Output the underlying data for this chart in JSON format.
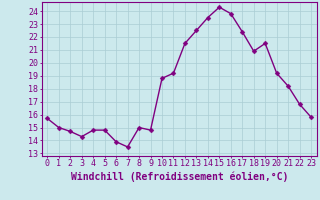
{
  "x": [
    0,
    1,
    2,
    3,
    4,
    5,
    6,
    7,
    8,
    9,
    10,
    11,
    12,
    13,
    14,
    15,
    16,
    17,
    18,
    19,
    20,
    21,
    22,
    23
  ],
  "y": [
    15.7,
    15.0,
    14.7,
    14.3,
    14.8,
    14.8,
    13.9,
    13.5,
    15.0,
    14.8,
    18.8,
    19.2,
    21.5,
    22.5,
    23.5,
    24.3,
    23.8,
    22.4,
    20.9,
    21.5,
    19.2,
    18.2,
    16.8,
    15.8
  ],
  "line_color": "#800080",
  "marker": "D",
  "marker_size": 2.5,
  "line_width": 1.0,
  "xlabel": "Windchill (Refroidissement éolien,°C)",
  "xlabel_fontsize": 7,
  "ylabel_ticks": [
    13,
    14,
    15,
    16,
    17,
    18,
    19,
    20,
    21,
    22,
    23,
    24
  ],
  "ylim": [
    12.8,
    24.7
  ],
  "xlim": [
    -0.5,
    23.5
  ],
  "xtick_labels": [
    "0",
    "1",
    "2",
    "3",
    "4",
    "5",
    "6",
    "7",
    "8",
    "9",
    "10",
    "11",
    "12",
    "13",
    "14",
    "15",
    "16",
    "17",
    "18",
    "19",
    "20",
    "21",
    "22",
    "23"
  ],
  "background_color": "#cce9ed",
  "grid_color": "#aacdd4",
  "tick_color": "#800080",
  "tick_fontsize": 6,
  "spine_color": "#800080"
}
